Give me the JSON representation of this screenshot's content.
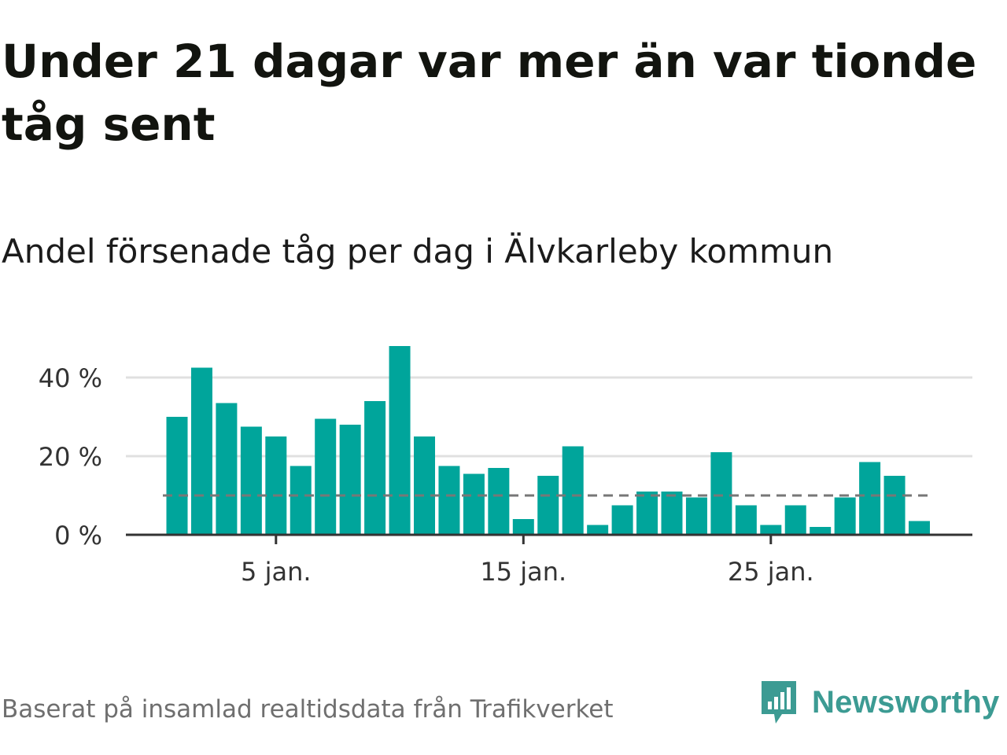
{
  "title": "Under 21 dagar var mer än var tionde tåg sent",
  "subtitle": "Andel försenade tåg per dag i Älvkarleby kommun",
  "footer": "Baserat på insamlad realtidsdata från Trafikverket",
  "brand": {
    "name": "Newsworthy",
    "icon": "newsworthy-chart-bubble-icon",
    "color": "#3c9b93"
  },
  "colors": {
    "bar": "#00a59b",
    "threshold": "#777777",
    "grid": "#e0e0e0",
    "axis": "#333333"
  },
  "chart_data": {
    "type": "bar",
    "x": [
      1,
      2,
      3,
      4,
      5,
      6,
      7,
      8,
      9,
      10,
      11,
      12,
      13,
      14,
      15,
      16,
      17,
      18,
      19,
      20,
      21,
      22,
      23,
      24,
      25,
      26,
      27,
      28,
      29,
      30,
      31
    ],
    "values": [
      30,
      42.5,
      33.5,
      27.5,
      25,
      17.5,
      29.5,
      28,
      34,
      48,
      25,
      17.5,
      15.5,
      17,
      4,
      15,
      22.5,
      2.5,
      7.5,
      11,
      11,
      9.5,
      21,
      7.5,
      2.5,
      7.5,
      2,
      9.5,
      18.5,
      15,
      3.5
    ],
    "ylim": [
      0,
      50
    ],
    "y_ticks": [
      0,
      20,
      40
    ],
    "y_tick_labels": [
      "0 %",
      "20 %",
      "40 %"
    ],
    "x_ticks": [
      5,
      15,
      25
    ],
    "x_tick_labels": [
      "5 jan.",
      "15 jan.",
      "25 jan."
    ],
    "reference_line": 10,
    "xlabel": "",
    "ylabel": "",
    "grid": true
  }
}
